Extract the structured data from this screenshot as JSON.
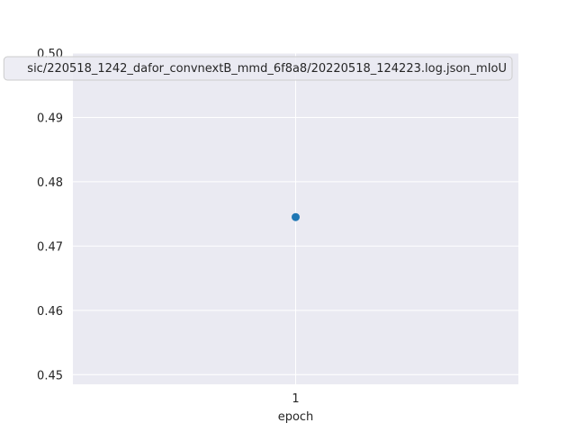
{
  "chart_data": {
    "type": "scatter",
    "xlabel": "epoch",
    "ylabel": "",
    "x_ticks": [
      1
    ],
    "y_ticks": [
      0.45,
      0.46,
      0.47,
      0.48,
      0.49,
      0.5
    ],
    "y_tick_labels": [
      "0.45",
      "0.46",
      "0.47",
      "0.48",
      "0.49",
      "0.50"
    ],
    "xlim": [
      0.5,
      1.5
    ],
    "ylim": [
      0.4485,
      0.5
    ],
    "grid": true,
    "legend_position": "upper-left",
    "series": [
      {
        "name": "sic/220518_1242_dafor_convnextB_mmd_6f8a8/20220518_124223.log.json_mIoU",
        "x": [
          1
        ],
        "y": [
          0.4745
        ],
        "color": "#1f77b4"
      }
    ],
    "background_color": "#eaeaf2"
  }
}
